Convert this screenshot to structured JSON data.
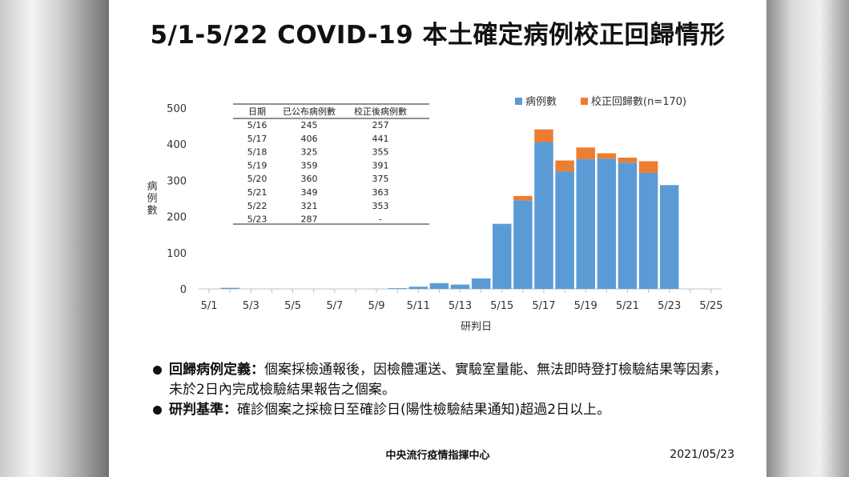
{
  "title": "5/1-5/22 COVID-19 本土確定病例校正回歸情形",
  "chart_data": {
    "type": "bar",
    "stacked": true,
    "categories": [
      "5/1",
      "5/2",
      "5/3",
      "5/4",
      "5/5",
      "5/6",
      "5/7",
      "5/8",
      "5/9",
      "5/10",
      "5/11",
      "5/12",
      "5/13",
      "5/14",
      "5/15",
      "5/16",
      "5/17",
      "5/18",
      "5/19",
      "5/20",
      "5/21",
      "5/22",
      "5/23",
      "5/24",
      "5/25"
    ],
    "x_tick_labels": [
      "5/1",
      "5/3",
      "5/5",
      "5/7",
      "5/9",
      "5/11",
      "5/13",
      "5/15",
      "5/17",
      "5/19",
      "5/21",
      "5/23",
      "5/25"
    ],
    "series": [
      {
        "name": "病例數",
        "color": "#5b9bd5",
        "values": [
          0,
          3,
          0,
          0,
          0,
          0,
          0,
          0,
          0,
          2,
          6,
          16,
          12,
          29,
          180,
          245,
          406,
          325,
          359,
          360,
          349,
          321,
          287,
          0,
          0
        ]
      },
      {
        "name": "校正回歸數(n=170)",
        "color": "#ed7d31",
        "values": [
          0,
          0,
          0,
          0,
          0,
          0,
          0,
          0,
          0,
          0,
          0,
          0,
          0,
          0,
          0,
          12,
          35,
          30,
          32,
          15,
          14,
          32,
          0,
          0,
          0
        ]
      }
    ],
    "xlabel": "研判日",
    "ylabel": "病例數",
    "ylim": [
      0,
      500
    ],
    "y_ticks": [
      0,
      100,
      200,
      300,
      400,
      500
    ],
    "grid": false,
    "legend_position": "top-right",
    "inset_table": {
      "headers": [
        "日期",
        "已公布病例數",
        "校正後病例數"
      ],
      "rows": [
        [
          "5/16",
          "245",
          "257"
        ],
        [
          "5/17",
          "406",
          "441"
        ],
        [
          "5/18",
          "325",
          "355"
        ],
        [
          "5/19",
          "359",
          "391"
        ],
        [
          "5/20",
          "360",
          "375"
        ],
        [
          "5/21",
          "349",
          "363"
        ],
        [
          "5/22",
          "321",
          "353"
        ],
        [
          "5/23",
          "287",
          "-"
        ]
      ]
    }
  },
  "notes": [
    {
      "term": "回歸病例定義：",
      "text": "個案採檢通報後，因檢體運送、實驗室量能、無法即時登打檢驗結果等因素，未於2日內完成檢驗結果報告之個案。"
    },
    {
      "term": "研判基準：",
      "text": "確診個案之採檢日至確診日(陽性檢驗結果通知)超過2日以上。"
    }
  ],
  "footer": {
    "agency": "中央流行疫情指揮中心",
    "date": "2021/05/23"
  }
}
